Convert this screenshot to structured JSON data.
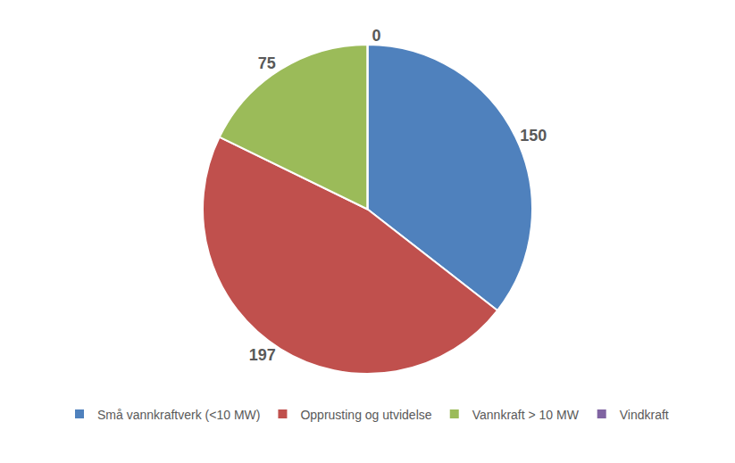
{
  "chart_data": {
    "type": "pie",
    "categories": [
      "Små vannkraftverk (<10 MW)",
      "Opprusting og utvidelse",
      "Vannkraft > 10 MW",
      "Vindkraft"
    ],
    "values": [
      150,
      197,
      75,
      0
    ],
    "colors": [
      "#4f81bd",
      "#c0504d",
      "#9bbb59",
      "#8064a2"
    ],
    "data_labels": true,
    "legend": "bottom"
  }
}
